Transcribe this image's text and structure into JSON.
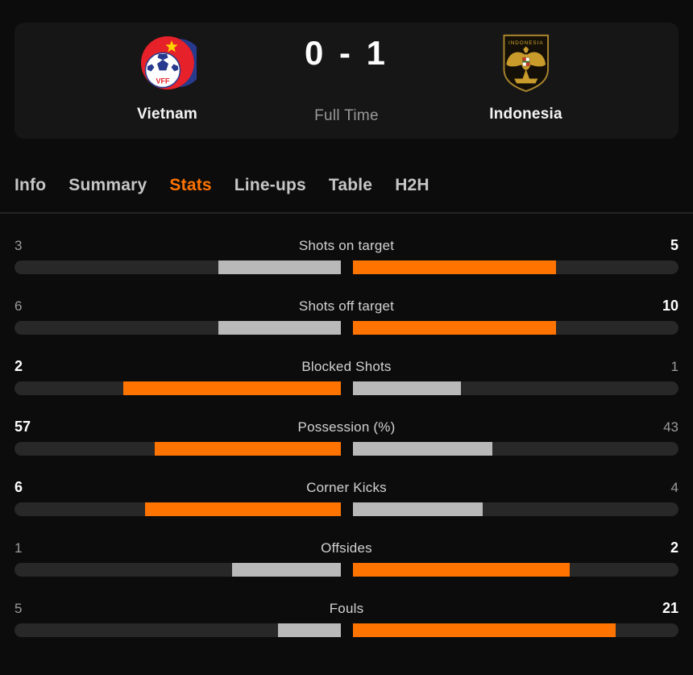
{
  "header": {
    "home": {
      "name": "Vietnam",
      "logo": "vff-crest"
    },
    "away": {
      "name": "Indonesia",
      "logo": "garuda-crest"
    },
    "score": "0 - 1",
    "status": "Full Time"
  },
  "tabs": [
    {
      "label": "Info",
      "active": false
    },
    {
      "label": "Summary",
      "active": false
    },
    {
      "label": "Stats",
      "active": true
    },
    {
      "label": "Line-ups",
      "active": false
    },
    {
      "label": "Table",
      "active": false
    },
    {
      "label": "H2H",
      "active": false
    }
  ],
  "stats": [
    {
      "label": "Shots on target",
      "home": 3,
      "away": 5
    },
    {
      "label": "Shots off target",
      "home": 6,
      "away": 10
    },
    {
      "label": "Blocked Shots",
      "home": 2,
      "away": 1
    },
    {
      "label": "Possession (%)",
      "home": 57,
      "away": 43
    },
    {
      "label": "Corner Kicks",
      "home": 6,
      "away": 4
    },
    {
      "label": "Offsides",
      "home": 1,
      "away": 2
    },
    {
      "label": "Fouls",
      "home": 5,
      "away": 21
    }
  ],
  "colors": {
    "accent": "#ff7300",
    "bar_fill_gray": "#b9b9b9",
    "bar_track": "#282828",
    "winner_text": "#ffffff",
    "loser_text": "#9c9c9c",
    "page_bg": "#0c0c0c",
    "card_bg": "#161616"
  }
}
